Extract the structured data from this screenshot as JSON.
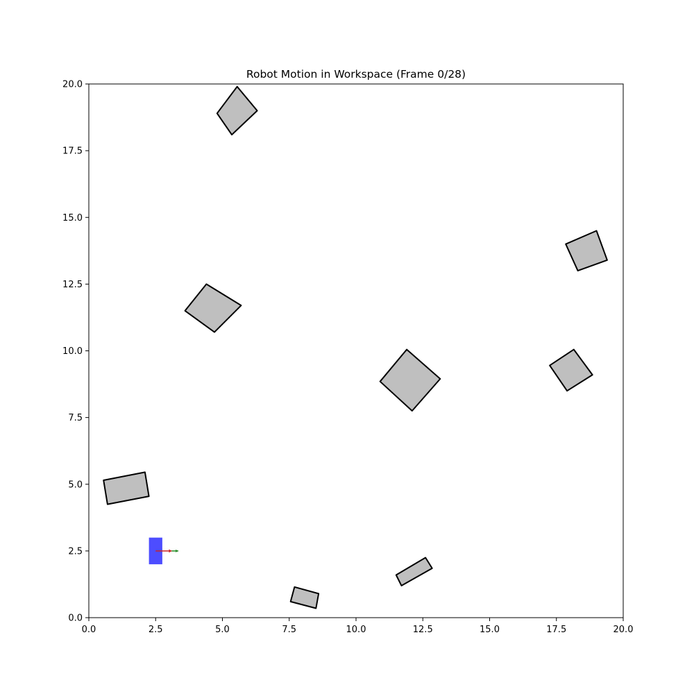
{
  "chart_data": {
    "type": "scatter",
    "title": "Robot Motion in Workspace (Frame 0/28)",
    "xlabel": "",
    "ylabel": "",
    "xlim": [
      0,
      20
    ],
    "ylim": [
      0,
      20
    ],
    "x_ticks": [
      0,
      2.5,
      5,
      7.5,
      10,
      12.5,
      15,
      17.5,
      20
    ],
    "x_tick_labels": [
      "0.0",
      "2.5",
      "5.0",
      "7.5",
      "10.0",
      "12.5",
      "15.0",
      "17.5",
      "20.0"
    ],
    "y_ticks": [
      0,
      2.5,
      5,
      7.5,
      10,
      12.5,
      15,
      17.5,
      20
    ],
    "y_tick_labels": [
      "0.0",
      "2.5",
      "5.0",
      "7.5",
      "10.0",
      "12.5",
      "15.0",
      "17.5",
      "20.0"
    ],
    "grid": false,
    "obstacle_color": "#bfbfbf",
    "obstacles": [
      {
        "points": [
          [
            4.8,
            18.9
          ],
          [
            5.55,
            19.9
          ],
          [
            6.3,
            19.0
          ],
          [
            5.35,
            18.1
          ]
        ]
      },
      {
        "points": [
          [
            17.85,
            14.0
          ],
          [
            19.0,
            14.5
          ],
          [
            19.4,
            13.4
          ],
          [
            18.3,
            13.0
          ]
        ]
      },
      {
        "points": [
          [
            3.6,
            11.5
          ],
          [
            4.4,
            12.5
          ],
          [
            5.7,
            11.7
          ],
          [
            4.7,
            10.7
          ]
        ]
      },
      {
        "points": [
          [
            10.9,
            8.85
          ],
          [
            11.9,
            10.05
          ],
          [
            13.15,
            8.95
          ],
          [
            12.1,
            7.75
          ]
        ]
      },
      {
        "points": [
          [
            17.25,
            9.45
          ],
          [
            18.15,
            10.05
          ],
          [
            18.85,
            9.1
          ],
          [
            17.9,
            8.5
          ]
        ]
      },
      {
        "points": [
          [
            0.55,
            5.15
          ],
          [
            2.1,
            5.45
          ],
          [
            2.25,
            4.55
          ],
          [
            0.7,
            4.25
          ]
        ]
      },
      {
        "points": [
          [
            11.5,
            1.6
          ],
          [
            12.6,
            2.25
          ],
          [
            12.85,
            1.85
          ],
          [
            11.7,
            1.2
          ]
        ]
      },
      {
        "points": [
          [
            7.7,
            1.15
          ],
          [
            8.6,
            0.9
          ],
          [
            8.5,
            0.35
          ],
          [
            7.55,
            0.6
          ]
        ]
      }
    ],
    "robot": {
      "x": 2.5,
      "y": 2.5,
      "width": 0.5,
      "height": 1.0,
      "color": "#4d4dff",
      "heading_x_color": "#cc2222",
      "heading_y_color": "#228822"
    }
  }
}
